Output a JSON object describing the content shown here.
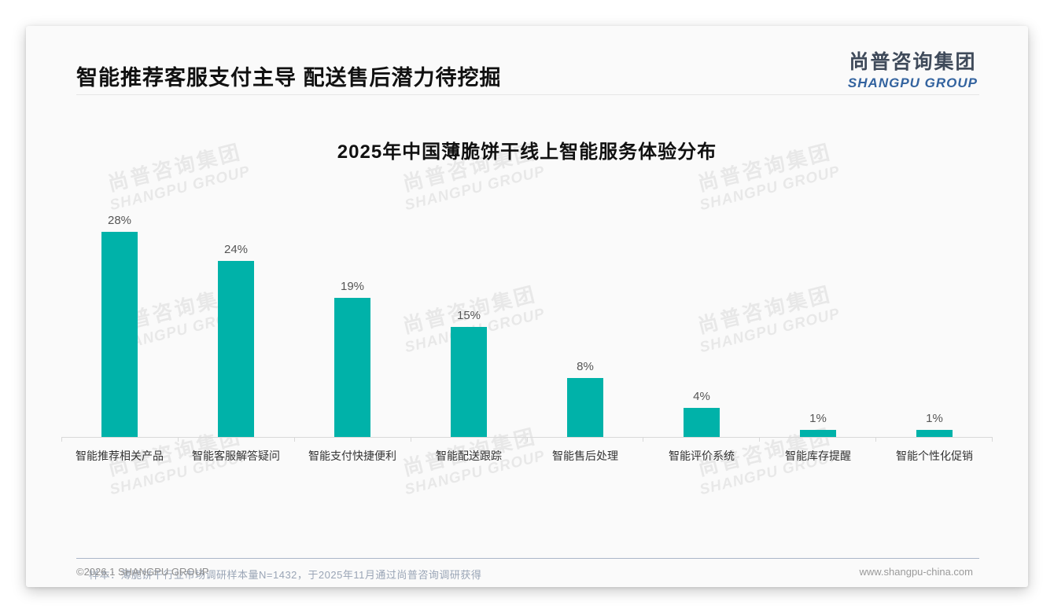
{
  "header": {
    "title": "智能推荐客服支付主导 配送售后潜力待挖掘",
    "logo_cn": "尚普咨询集团",
    "logo_en": "SHANGPU GROUP"
  },
  "chart_data": {
    "type": "bar",
    "title": "2025年中国薄脆饼干线上智能服务体验分布",
    "categories": [
      "智能推荐相关产品",
      "智能客服解答疑问",
      "智能支付快捷便利",
      "智能配送跟踪",
      "智能售后处理",
      "智能评价系统",
      "智能库存提醒",
      "智能个性化促销"
    ],
    "values": [
      28,
      24,
      19,
      15,
      8,
      4,
      1,
      1
    ],
    "data_labels": [
      "28%",
      "24%",
      "19%",
      "15%",
      "8%",
      "4%",
      "1%",
      "1%"
    ],
    "unit": "%",
    "ylim": [
      0,
      30
    ],
    "grid": false,
    "legend": "none",
    "bar_color": "#00b2a9",
    "axis_color": "#d9d9d9",
    "label_color": "#555555"
  },
  "watermark": {
    "cn": "尚普咨询集团",
    "en": "SHANGPU GROUP"
  },
  "footnote": "样本：薄脆饼干行业市场调研样本量N=1432，于2025年11月通过尚普咨询调研获得",
  "footer": {
    "left": "©2026.1 SHANGPU GROUP",
    "right": "www.shangpu-china.com"
  },
  "colors": {
    "bar_teal": "#00b2a9",
    "logo_blue": "#33639f",
    "card_bg": "#fafafa"
  }
}
